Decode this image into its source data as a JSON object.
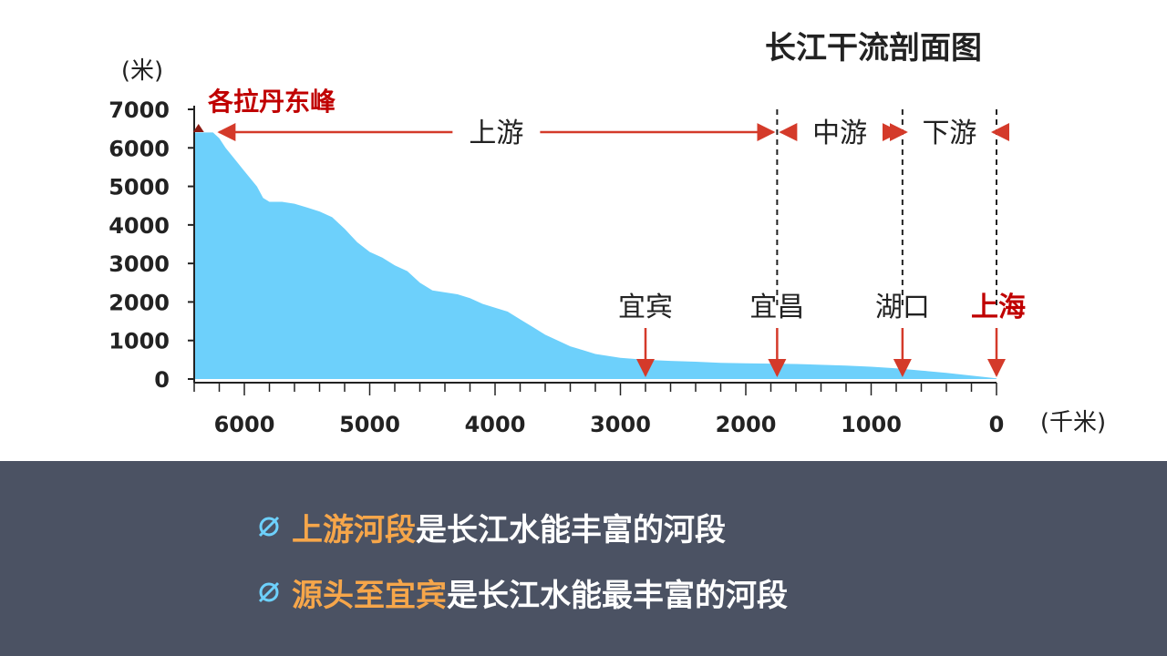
{
  "colors": {
    "area_fill": "#6dd0fb",
    "accent_red": "#c00000",
    "arrow_red": "#d43a2a",
    "panel_bg": "#4b5263",
    "highlight": "#f6a64a",
    "bullet_icon": "#6dd0fb",
    "summit_marker": "#8b1a12"
  },
  "chart_data": {
    "type": "area",
    "title": "长江干流剖面图",
    "ylabel": "(米)",
    "xlabel": "(千米)",
    "xlim": [
      6400,
      0
    ],
    "ylim": [
      0,
      7000
    ],
    "x_ticks": [
      6000,
      5000,
      4000,
      3000,
      2000,
      1000,
      0
    ],
    "y_ticks": [
      7000,
      6000,
      5000,
      4000,
      3000,
      2000,
      1000,
      0
    ],
    "profile": {
      "x": [
        6300,
        6250,
        6200,
        6150,
        6100,
        6000,
        5900,
        5850,
        5800,
        5700,
        5600,
        5500,
        5400,
        5300,
        5200,
        5100,
        5000,
        4900,
        4800,
        4700,
        4600,
        4500,
        4400,
        4300,
        4250,
        4200,
        4100,
        4000,
        3900,
        3800,
        3700,
        3600,
        3500,
        3400,
        3300,
        3200,
        3000,
        2800,
        2600,
        2400,
        2200,
        2000,
        1800,
        1600,
        1400,
        1200,
        1000,
        800,
        600,
        400,
        200,
        0
      ],
      "y": [
        6400,
        6400,
        6250,
        6000,
        5800,
        5400,
        5000,
        4700,
        4600,
        4600,
        4550,
        4450,
        4350,
        4200,
        3900,
        3550,
        3300,
        3150,
        2950,
        2800,
        2500,
        2300,
        2250,
        2200,
        2150,
        2100,
        1950,
        1850,
        1750,
        1550,
        1350,
        1150,
        1000,
        850,
        750,
        650,
        550,
        500,
        470,
        450,
        420,
        410,
        400,
        390,
        370,
        350,
        320,
        280,
        220,
        160,
        90,
        20
      ]
    },
    "peak": {
      "label": "各拉丹东峰",
      "x": 6300,
      "y": 6621
    },
    "boundaries": [
      {
        "x": 1750,
        "label": "宜昌"
      },
      {
        "x": 750,
        "label": "湖口"
      },
      {
        "x": 0,
        "label": "上海"
      }
    ],
    "sections": [
      {
        "label": "上游",
        "from": 6230,
        "to": 1750
      },
      {
        "label": "中游",
        "from": 1750,
        "to": 750
      },
      {
        "label": "下游",
        "from": 750,
        "to": 0
      }
    ],
    "city_markers": [
      {
        "label": "宜宾",
        "x": 2800
      },
      {
        "label": "宜昌",
        "x": 1750
      },
      {
        "label": "湖口",
        "x": 750
      },
      {
        "label": "上海",
        "x": 0
      }
    ]
  },
  "bullets": [
    {
      "highlight": "上游河段",
      "text": "是长江水能丰富的河段"
    },
    {
      "highlight": "源头至宜宾",
      "text": "是长江水能最丰富的河段"
    }
  ]
}
